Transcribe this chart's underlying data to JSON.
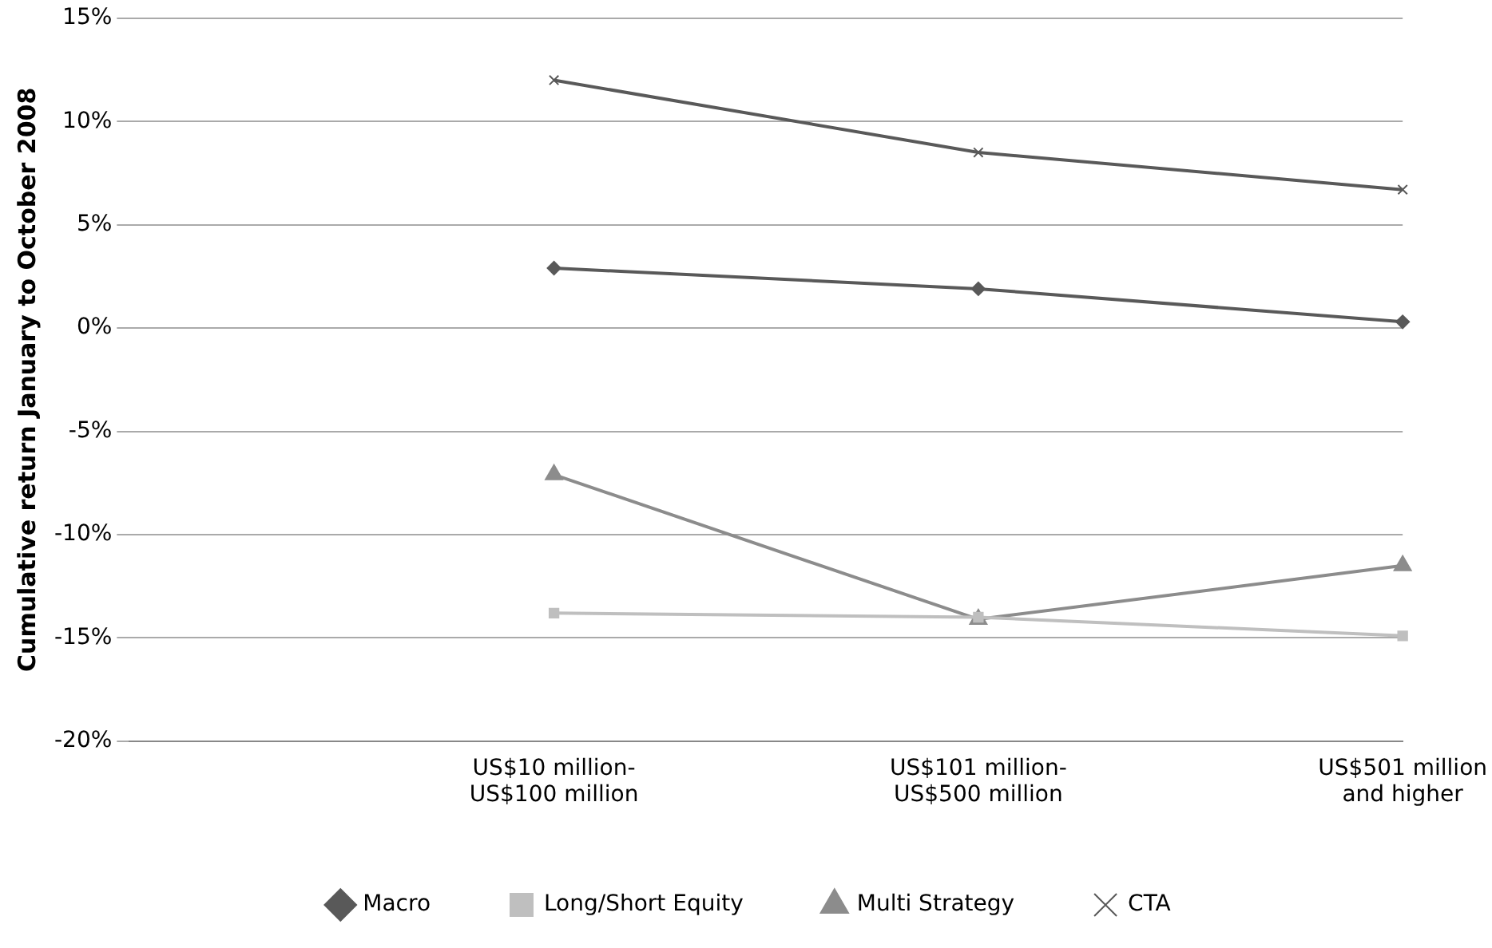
{
  "chart_data": {
    "type": "line",
    "ylabel": "Cumulative return January to October 2008",
    "categories": [
      null,
      "US$10 million- US$100 million",
      "US$101 million- US$500 million",
      "US$501 million and higher"
    ],
    "series": [
      {
        "name": "Macro",
        "color": "#595959",
        "marker": "diamond",
        "values": [
          null,
          2.9,
          1.9,
          0.3
        ]
      },
      {
        "name": "Long/Short Equity",
        "color": "#bfbfbf",
        "marker": "square",
        "values": [
          null,
          -13.8,
          -14.0,
          -14.9
        ]
      },
      {
        "name": "Multi Strategy",
        "color": "#8c8c8c",
        "marker": "triangle",
        "values": [
          null,
          -7.1,
          -14.1,
          -11.5
        ]
      },
      {
        "name": "CTA",
        "color": "#595959",
        "marker": "cross",
        "values": [
          null,
          12.0,
          8.5,
          6.7
        ]
      }
    ],
    "ylim": [
      -20,
      15
    ],
    "yticks": [
      {
        "value": -20,
        "label": "-20%"
      },
      {
        "value": -15,
        "label": "-15%"
      },
      {
        "value": -10,
        "label": "-10%"
      },
      {
        "value": -5,
        "label": "-5%"
      },
      {
        "value": 0,
        "label": "0%"
      },
      {
        "value": 5,
        "label": "5%"
      },
      {
        "value": 10,
        "label": "10%"
      },
      {
        "value": 15,
        "label": "15%"
      }
    ],
    "grid": "y",
    "legend": "bottom",
    "line_style": "solid"
  }
}
